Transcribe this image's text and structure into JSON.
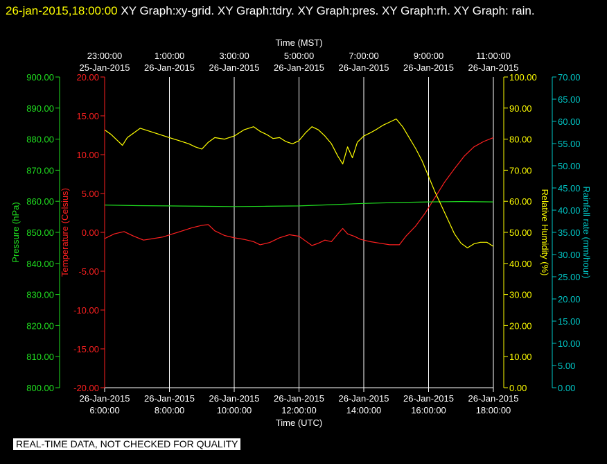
{
  "header": {
    "timestamp": "26-jan-2015,18:00:00",
    "graphs": "  XY Graph:xy-grid.  XY Graph:tdry.  XY Graph:pres.  XY Graph:rh.  XY Graph: rain."
  },
  "quality_note": "REAL-TIME DATA, NOT CHECKED FOR QUALITY",
  "colors": {
    "background": "#000000",
    "grid": "#ffffff",
    "temperature": "#ff2020",
    "pressure": "#20e020",
    "humidity": "#ffff00",
    "rain": "#00c8c8",
    "axis_text": "#ffffff"
  },
  "chart_data": {
    "type": "line",
    "grid": true,
    "x_top": {
      "label": "Time (MST)",
      "ticks": [
        [
          "23:00:00",
          "25-Jan-2015"
        ],
        [
          "1:00:00",
          "26-Jan-2015"
        ],
        [
          "3:00:00",
          "26-Jan-2015"
        ],
        [
          "5:00:00",
          "26-Jan-2015"
        ],
        [
          "7:00:00",
          "26-Jan-2015"
        ],
        [
          "9:00:00",
          "26-Jan-2015"
        ],
        [
          "11:00:00",
          "26-Jan-2015"
        ]
      ]
    },
    "x_bottom": {
      "label": "Time (UTC)",
      "range_hours": [
        6,
        18
      ],
      "tick_hours": [
        6,
        8,
        10,
        12,
        14,
        16,
        18
      ],
      "ticks": [
        [
          "26-Jan-2015",
          "6:00:00"
        ],
        [
          "26-Jan-2015",
          "8:00:00"
        ],
        [
          "26-Jan-2015",
          "10:00:00"
        ],
        [
          "26-Jan-2015",
          "12:00:00"
        ],
        [
          "26-Jan-2015",
          "14:00:00"
        ],
        [
          "26-Jan-2015",
          "16:00:00"
        ],
        [
          "26-Jan-2015",
          "18:00:00"
        ]
      ]
    },
    "axes": {
      "pressure": {
        "label": "Pressure (hPa)",
        "range": [
          800,
          900
        ],
        "step": 10,
        "ticks": [
          "800.00",
          "810.00",
          "820.00",
          "830.00",
          "840.00",
          "850.00",
          "860.00",
          "870.00",
          "880.00",
          "890.00",
          "900.00"
        ]
      },
      "temperature": {
        "label": "Temperature (Celsius)",
        "range": [
          -20,
          20
        ],
        "step": 5,
        "ticks": [
          "-20.00",
          "-15.00",
          "-10.00",
          "-5.00",
          "0.00",
          "5.00",
          "10.00",
          "15.00",
          "20.00"
        ]
      },
      "humidity": {
        "label": "Relative Humidity (%)",
        "range": [
          0,
          100
        ],
        "step": 10,
        "ticks": [
          "0.00",
          "10.00",
          "20.00",
          "30.00",
          "40.00",
          "50.00",
          "60.00",
          "70.00",
          "80.00",
          "90.00",
          "100.00"
        ]
      },
      "rain": {
        "label": "Rainfall rate (mm/hour)",
        "range": [
          0,
          70
        ],
        "step": 5,
        "ticks": [
          "0.00",
          "5.00",
          "10.00",
          "15.00",
          "20.00",
          "25.00",
          "30.00",
          "35.00",
          "40.00",
          "45.00",
          "50.00",
          "55.00",
          "60.00",
          "65.00",
          "70.00"
        ]
      }
    },
    "series": [
      {
        "name": "Temperature (Celsius)",
        "axis": "temperature",
        "color": "#ff2020",
        "points": [
          [
            6.0,
            -0.8
          ],
          [
            6.3,
            -0.2
          ],
          [
            6.6,
            0.1
          ],
          [
            6.9,
            -0.5
          ],
          [
            7.2,
            -1.0
          ],
          [
            7.5,
            -0.8
          ],
          [
            7.8,
            -0.6
          ],
          [
            8.1,
            -0.2
          ],
          [
            8.4,
            0.2
          ],
          [
            8.7,
            0.6
          ],
          [
            9.0,
            0.9
          ],
          [
            9.2,
            1.0
          ],
          [
            9.4,
            0.2
          ],
          [
            9.7,
            -0.4
          ],
          [
            10.0,
            -0.7
          ],
          [
            10.3,
            -0.9
          ],
          [
            10.6,
            -1.2
          ],
          [
            10.8,
            -1.6
          ],
          [
            11.1,
            -1.3
          ],
          [
            11.4,
            -0.7
          ],
          [
            11.7,
            -0.3
          ],
          [
            12.0,
            -0.5
          ],
          [
            12.2,
            -1.1
          ],
          [
            12.4,
            -1.7
          ],
          [
            12.6,
            -1.4
          ],
          [
            12.8,
            -1.0
          ],
          [
            13.0,
            -1.2
          ],
          [
            13.2,
            -0.2
          ],
          [
            13.35,
            0.5
          ],
          [
            13.5,
            -0.2
          ],
          [
            13.7,
            -0.5
          ],
          [
            13.9,
            -0.9
          ],
          [
            14.2,
            -1.2
          ],
          [
            14.5,
            -1.4
          ],
          [
            14.8,
            -1.6
          ],
          [
            15.1,
            -1.6
          ],
          [
            15.3,
            -0.5
          ],
          [
            15.6,
            0.8
          ],
          [
            15.9,
            2.5
          ],
          [
            16.2,
            4.5
          ],
          [
            16.5,
            6.5
          ],
          [
            16.8,
            8.2
          ],
          [
            17.1,
            9.8
          ],
          [
            17.4,
            11.0
          ],
          [
            17.7,
            11.7
          ],
          [
            18.0,
            12.2
          ]
        ]
      },
      {
        "name": "Pressure (hPa)",
        "axis": "pressure",
        "color": "#20e020",
        "points": [
          [
            6.0,
            858.8
          ],
          [
            7.0,
            858.6
          ],
          [
            8.0,
            858.5
          ],
          [
            9.0,
            858.4
          ],
          [
            10.0,
            858.3
          ],
          [
            11.0,
            858.4
          ],
          [
            12.0,
            858.5
          ],
          [
            13.0,
            858.9
          ],
          [
            14.0,
            859.3
          ],
          [
            15.0,
            859.6
          ],
          [
            16.0,
            859.8
          ],
          [
            17.0,
            859.9
          ],
          [
            18.0,
            859.8
          ]
        ]
      },
      {
        "name": "Relative Humidity (%)",
        "axis": "humidity",
        "color": "#ffff00",
        "points": [
          [
            6.0,
            83
          ],
          [
            6.2,
            81.5
          ],
          [
            6.4,
            79.5
          ],
          [
            6.55,
            78
          ],
          [
            6.7,
            80.5
          ],
          [
            6.9,
            82
          ],
          [
            7.1,
            83.5
          ],
          [
            7.4,
            82.5
          ],
          [
            7.7,
            81.5
          ],
          [
            8.0,
            80.5
          ],
          [
            8.3,
            79.5
          ],
          [
            8.6,
            78.5
          ],
          [
            8.8,
            77.5
          ],
          [
            9.0,
            76.8
          ],
          [
            9.2,
            79
          ],
          [
            9.4,
            80.5
          ],
          [
            9.7,
            80
          ],
          [
            10.0,
            81
          ],
          [
            10.3,
            83
          ],
          [
            10.6,
            84
          ],
          [
            10.8,
            82.5
          ],
          [
            11.0,
            81.5
          ],
          [
            11.2,
            80.2
          ],
          [
            11.4,
            80.5
          ],
          [
            11.6,
            79.2
          ],
          [
            11.8,
            78.5
          ],
          [
            12.0,
            79.5
          ],
          [
            12.2,
            82
          ],
          [
            12.4,
            84
          ],
          [
            12.6,
            83
          ],
          [
            12.8,
            81
          ],
          [
            13.0,
            78.5
          ],
          [
            13.2,
            74.5
          ],
          [
            13.35,
            72
          ],
          [
            13.5,
            77.5
          ],
          [
            13.65,
            74
          ],
          [
            13.8,
            79
          ],
          [
            14.0,
            81
          ],
          [
            14.2,
            82
          ],
          [
            14.4,
            83.2
          ],
          [
            14.6,
            84.5
          ],
          [
            14.8,
            85.5
          ],
          [
            15.0,
            86.5
          ],
          [
            15.2,
            84
          ],
          [
            15.4,
            80.5
          ],
          [
            15.6,
            77
          ],
          [
            15.8,
            73
          ],
          [
            16.0,
            68
          ],
          [
            16.2,
            63
          ],
          [
            16.4,
            58.5
          ],
          [
            16.6,
            54
          ],
          [
            16.8,
            49.5
          ],
          [
            17.0,
            46.5
          ],
          [
            17.2,
            45
          ],
          [
            17.4,
            46.3
          ],
          [
            17.6,
            46.8
          ],
          [
            17.8,
            46.8
          ],
          [
            18.0,
            45.5
          ]
        ]
      },
      {
        "name": "Rainfall rate (mm/hour)",
        "axis": "rain",
        "color": "#00c8c8",
        "points": []
      }
    ]
  }
}
